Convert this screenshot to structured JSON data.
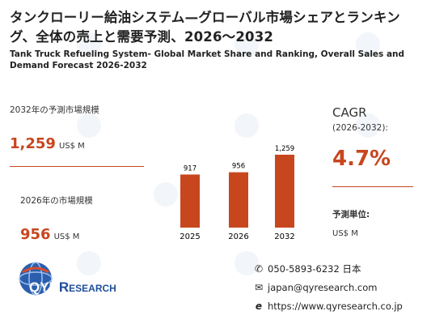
{
  "title_jp": "タンクローリー給油システム—グローバル市場シェアとランキング、全体の売上と需要予測、2026～2032",
  "title_en": "Tank Truck Refueling System- Global Market Share and Ranking, Overall Sales and Demand Forecast 2026-2032",
  "left_panel": {
    "forecast_label": "2032年の予測市場規模",
    "forecast_value": "1,259",
    "forecast_unit": "US$ M",
    "current_label": "2026年の市場規模",
    "current_value": "956",
    "current_unit": "US$ M"
  },
  "chart_data": {
    "type": "bar",
    "categories": [
      "2025",
      "2026",
      "2032"
    ],
    "values": [
      917,
      956,
      1259
    ],
    "value_labels": [
      "917",
      "956",
      "1,259"
    ],
    "title": "",
    "xlabel": "",
    "ylabel": "",
    "ylim": [
      0,
      1259
    ],
    "grid": false,
    "bar_color": "#c8461e"
  },
  "right_panel": {
    "cagr_title": "CAGR",
    "cagr_period": "(2026-2032):",
    "cagr_value": "4.7%",
    "unit_label": "予測単位:",
    "unit_value": "US$ M"
  },
  "logo": {
    "text_q": "Q",
    "text_yr": "YR",
    "text_research": "ESEARCH",
    "text_r": "R"
  },
  "contact": {
    "phone": "050-5893-6232 日本",
    "email": "japan@qyresearch.com",
    "url": "https://www.qyresearch.co.jp"
  },
  "icons": {
    "phone": "phone-icon",
    "email": "envelope-icon",
    "web": "web-icon"
  },
  "colors": {
    "accent": "#c8461e",
    "logo_blue": "#1f4e9c"
  }
}
